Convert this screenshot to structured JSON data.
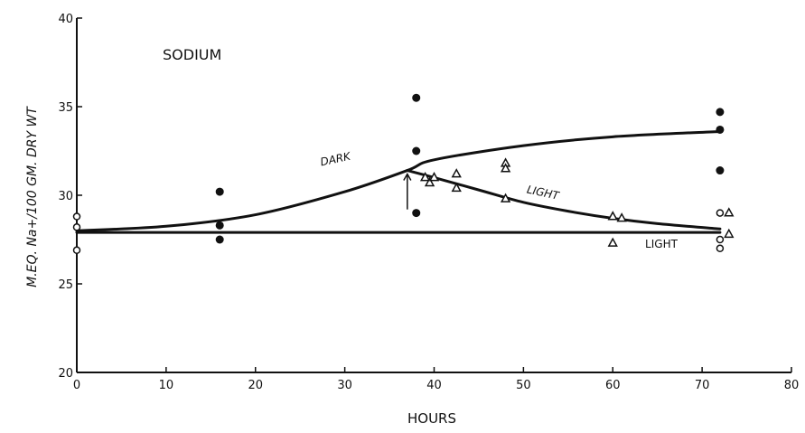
{
  "chart_data": {
    "type": "scatter",
    "title": "SODIUM",
    "xlabel": "HOURS",
    "ylabel": "M.EQ. Na+/100 GM. DRY WT",
    "xlim": [
      0,
      80
    ],
    "ylim": [
      20,
      40
    ],
    "xticks": [
      0,
      10,
      20,
      30,
      40,
      50,
      60,
      70,
      80
    ],
    "yticks": [
      20,
      25,
      30,
      35,
      40
    ],
    "grid": false,
    "series": [
      {
        "marker": "filled-circle",
        "points": [
          [
            16,
            30.2
          ],
          [
            16,
            28.3
          ],
          [
            16,
            27.5
          ],
          [
            38,
            35.5
          ],
          [
            38,
            32.5
          ],
          [
            38,
            29.0
          ],
          [
            72,
            34.7
          ],
          [
            72,
            33.7
          ],
          [
            72,
            31.4
          ]
        ]
      },
      {
        "marker": "open-circle",
        "points": [
          [
            0,
            28.8
          ],
          [
            0,
            28.2
          ],
          [
            0,
            26.9
          ],
          [
            72,
            29.0
          ],
          [
            72,
            27.5
          ],
          [
            72,
            27.0
          ]
        ]
      },
      {
        "marker": "open-triangle",
        "points": [
          [
            39,
            31.0
          ],
          [
            39.5,
            30.7
          ],
          [
            40,
            31.0
          ],
          [
            42.5,
            31.2
          ],
          [
            42.5,
            30.4
          ],
          [
            48,
            31.8
          ],
          [
            48,
            31.5
          ],
          [
            48,
            29.8
          ],
          [
            60,
            28.8
          ],
          [
            61,
            28.7
          ],
          [
            60,
            27.3
          ],
          [
            73,
            29.0
          ],
          [
            73,
            27.8
          ]
        ]
      }
    ],
    "curves": [
      {
        "label": "DARK",
        "points": [
          [
            0,
            28.0
          ],
          [
            10,
            28.25
          ],
          [
            20,
            28.9
          ],
          [
            30,
            30.2
          ],
          [
            37,
            31.4
          ],
          [
            40,
            32.0
          ],
          [
            50,
            32.8
          ],
          [
            60,
            33.3
          ],
          [
            72,
            33.6
          ]
        ]
      },
      {
        "label": "LIGHT",
        "points": [
          [
            37,
            31.4
          ],
          [
            40,
            31.0
          ],
          [
            45,
            30.3
          ],
          [
            50,
            29.6
          ],
          [
            55,
            29.1
          ],
          [
            60,
            28.7
          ],
          [
            65,
            28.4
          ],
          [
            72,
            28.1
          ]
        ]
      },
      {
        "label": "LIGHT",
        "points": [
          [
            0,
            27.9
          ],
          [
            72,
            27.9
          ]
        ]
      }
    ],
    "annotation": {
      "type": "arrow",
      "from": [
        37,
        29.2
      ],
      "to": [
        37,
        31.2
      ]
    }
  }
}
